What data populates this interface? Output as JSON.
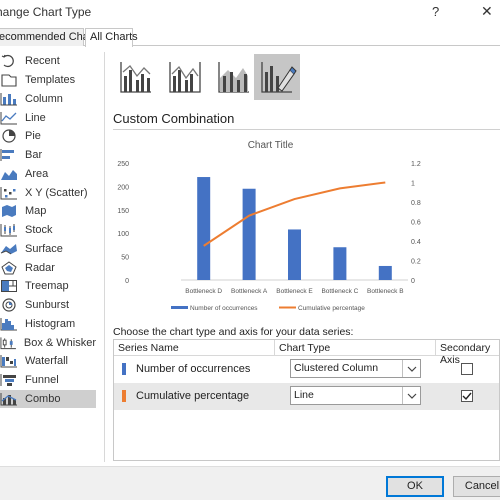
{
  "window": {
    "title": "hange Chart Type",
    "help": "?",
    "close": "✕"
  },
  "tabs": [
    {
      "label": "ecommended Charts",
      "selected": false
    },
    {
      "label": "All Charts",
      "selected": true
    }
  ],
  "sidebar": {
    "items": [
      {
        "label": "Recent",
        "icon": "recent-icon"
      },
      {
        "label": "Templates",
        "icon": "templates-icon"
      },
      {
        "label": "Column",
        "icon": "column-chart-icon"
      },
      {
        "label": "Line",
        "icon": "line-chart-icon"
      },
      {
        "label": "Pie",
        "icon": "pie-chart-icon"
      },
      {
        "label": "Bar",
        "icon": "bar-chart-icon"
      },
      {
        "label": "Area",
        "icon": "area-chart-icon"
      },
      {
        "label": "X Y (Scatter)",
        "icon": "scatter-chart-icon"
      },
      {
        "label": "Map",
        "icon": "map-chart-icon"
      },
      {
        "label": "Stock",
        "icon": "stock-chart-icon"
      },
      {
        "label": "Surface",
        "icon": "surface-chart-icon"
      },
      {
        "label": "Radar",
        "icon": "radar-chart-icon"
      },
      {
        "label": "Treemap",
        "icon": "treemap-chart-icon"
      },
      {
        "label": "Sunburst",
        "icon": "sunburst-chart-icon"
      },
      {
        "label": "Histogram",
        "icon": "histogram-chart-icon"
      },
      {
        "label": "Box & Whisker",
        "icon": "box-whisker-chart-icon"
      },
      {
        "label": "Waterfall",
        "icon": "waterfall-chart-icon"
      },
      {
        "label": "Funnel",
        "icon": "funnel-chart-icon"
      },
      {
        "label": "Combo",
        "icon": "combo-chart-icon",
        "selected": true
      }
    ]
  },
  "combo_variants": [
    {
      "icon": "clustered-column-line-icon",
      "selected": false
    },
    {
      "icon": "clustered-column-line-secondary-axis-icon",
      "selected": false
    },
    {
      "icon": "stacked-area-clustered-column-icon",
      "selected": false
    },
    {
      "icon": "custom-combination-icon",
      "selected": true
    }
  ],
  "section_title": "Custom Combination",
  "chart_data": {
    "type": "bar",
    "title": "Chart Title",
    "categories": [
      "Bottleneck D",
      "Bottleneck A",
      "Bottleneck E",
      "Bottleneck C",
      "Bottleneck B"
    ],
    "series": [
      {
        "name": "Number of occurrences",
        "chart_type": "bar",
        "axis": "primary",
        "color": "#4472c4",
        "values": [
          220,
          195,
          108,
          70,
          30
        ]
      },
      {
        "name": "Cumulative percentage",
        "chart_type": "line",
        "axis": "secondary",
        "color": "#ed7d31",
        "values": [
          0.35,
          0.66,
          0.83,
          0.94,
          1.0
        ]
      }
    ],
    "ylim": [
      0,
      250
    ],
    "y_ticks": [
      "0",
      "50",
      "100",
      "150",
      "200",
      "250"
    ],
    "y2lim": [
      0,
      1.2
    ],
    "y2_ticks": [
      "0",
      "0.2",
      "0.4",
      "0.6",
      "0.8",
      "1",
      "1.2"
    ],
    "legend": "bottom",
    "grid": false
  },
  "series_table": {
    "instruction": "Choose the chart type and axis for your data series:",
    "headers": {
      "name": "Series Name",
      "type": "Chart Type",
      "axis": "Secondary Axis"
    },
    "rows": [
      {
        "name": "Number of occurrences",
        "type": "Clustered Column",
        "secondary": false,
        "color": "#4472c4"
      },
      {
        "name": "Cumulative percentage",
        "type": "Line",
        "secondary": true,
        "color": "#ed7d31"
      }
    ]
  },
  "buttons": {
    "ok": "OK",
    "cancel": "Cancel"
  }
}
